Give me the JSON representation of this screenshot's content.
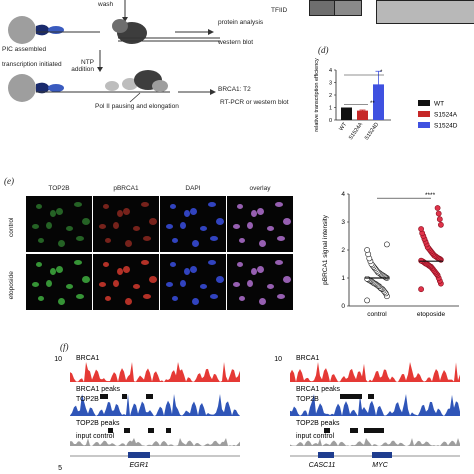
{
  "panel_c": {
    "wash_label": "wash",
    "pic_label": "PIC assembled",
    "transcription_label": "transcription initiated",
    "ntp_label": "NTP addition",
    "protein_label": "protein analysis",
    "western1_label": "western blot",
    "brca1_t2_label": "BRCA1: T2",
    "rtpcr_label": "RT-PCR or western blot",
    "pol_label": "Pol II pausing and elongation"
  },
  "blot_label": "TFIID",
  "panel_d": {
    "letter": "(d)",
    "chart_data": {
      "type": "bar",
      "categories": [
        "WT",
        "S1524A",
        "S1524D"
      ],
      "values": [
        1.0,
        0.75,
        2.85
      ],
      "errors": [
        0.0,
        0.05,
        1.05
      ],
      "colors": [
        "#111111",
        "#c62828",
        "#3f51e0"
      ],
      "ylabel": "relative transcription efficiency",
      "yticks": [
        0,
        1,
        2,
        3,
        4
      ],
      "ylim": [
        0,
        4
      ],
      "legend": [
        "WT",
        "S1524A",
        "S1524D"
      ],
      "legend_position": "right",
      "significance": [
        "*",
        "**"
      ]
    }
  },
  "panel_e": {
    "letter": "(e)",
    "columns": [
      "TOP2B",
      "pBRCA1",
      "DAPI",
      "overlay"
    ],
    "rows": [
      "control",
      "etoposide"
    ],
    "cell_colors": [
      "#3fae3f",
      "#d43a2e",
      "#3a4fe0",
      "#b070d0"
    ],
    "chart_data": {
      "type": "scatter",
      "categories": [
        "control",
        "etoposide"
      ],
      "ylabel": "pBRCA1 signal intensity",
      "yticks": [
        0,
        1,
        2,
        3,
        4
      ],
      "ylim": [
        0,
        4
      ],
      "means": [
        1.0,
        1.6
      ],
      "significance": "****",
      "colors": [
        "#ffffff",
        "#e0334a"
      ],
      "points": [
        [
          0.2,
          0.35,
          0.45,
          0.5,
          0.55,
          0.6,
          0.62,
          0.65,
          0.7,
          0.72,
          0.75,
          0.78,
          0.8,
          0.82,
          0.85,
          0.88,
          0.9,
          0.92,
          0.95,
          0.97,
          1.0,
          1.02,
          1.05,
          1.08,
          1.1,
          1.12,
          1.15,
          1.18,
          1.2,
          1.25,
          1.3,
          1.35,
          1.4,
          1.45,
          1.5,
          1.6,
          1.7,
          1.85,
          2.0,
          2.2
        ],
        [
          0.6,
          0.8,
          0.9,
          1.0,
          1.1,
          1.15,
          1.2,
          1.25,
          1.3,
          1.35,
          1.4,
          1.42,
          1.45,
          1.48,
          1.5,
          1.52,
          1.55,
          1.58,
          1.6,
          1.62,
          1.65,
          1.68,
          1.7,
          1.72,
          1.75,
          1.78,
          1.8,
          1.85,
          1.9,
          1.95,
          2.0,
          2.05,
          2.1,
          2.2,
          2.3,
          2.4,
          2.5,
          2.6,
          2.75,
          2.9,
          3.1,
          3.3,
          3.5
        ]
      ]
    }
  },
  "panel_f": {
    "letter": "(f)",
    "left": {
      "scale": "10",
      "tracks": [
        "BRCA1",
        "BRCA1 peaks",
        "TOP2B",
        "TOP2B peaks",
        "input control"
      ],
      "gene": "EGR1"
    },
    "right": {
      "scale": "10",
      "tracks": [
        "BRCA1",
        "BRCA1 peaks",
        "TOP2B",
        "TOP2B peaks",
        "input control"
      ],
      "gene_left": "CASC11",
      "gene_right": "MYC"
    },
    "bottom_scale": "5",
    "colors": {
      "brca1": "#e53935",
      "top2b": "#2f55b8",
      "input": "#9e9e9e"
    }
  }
}
